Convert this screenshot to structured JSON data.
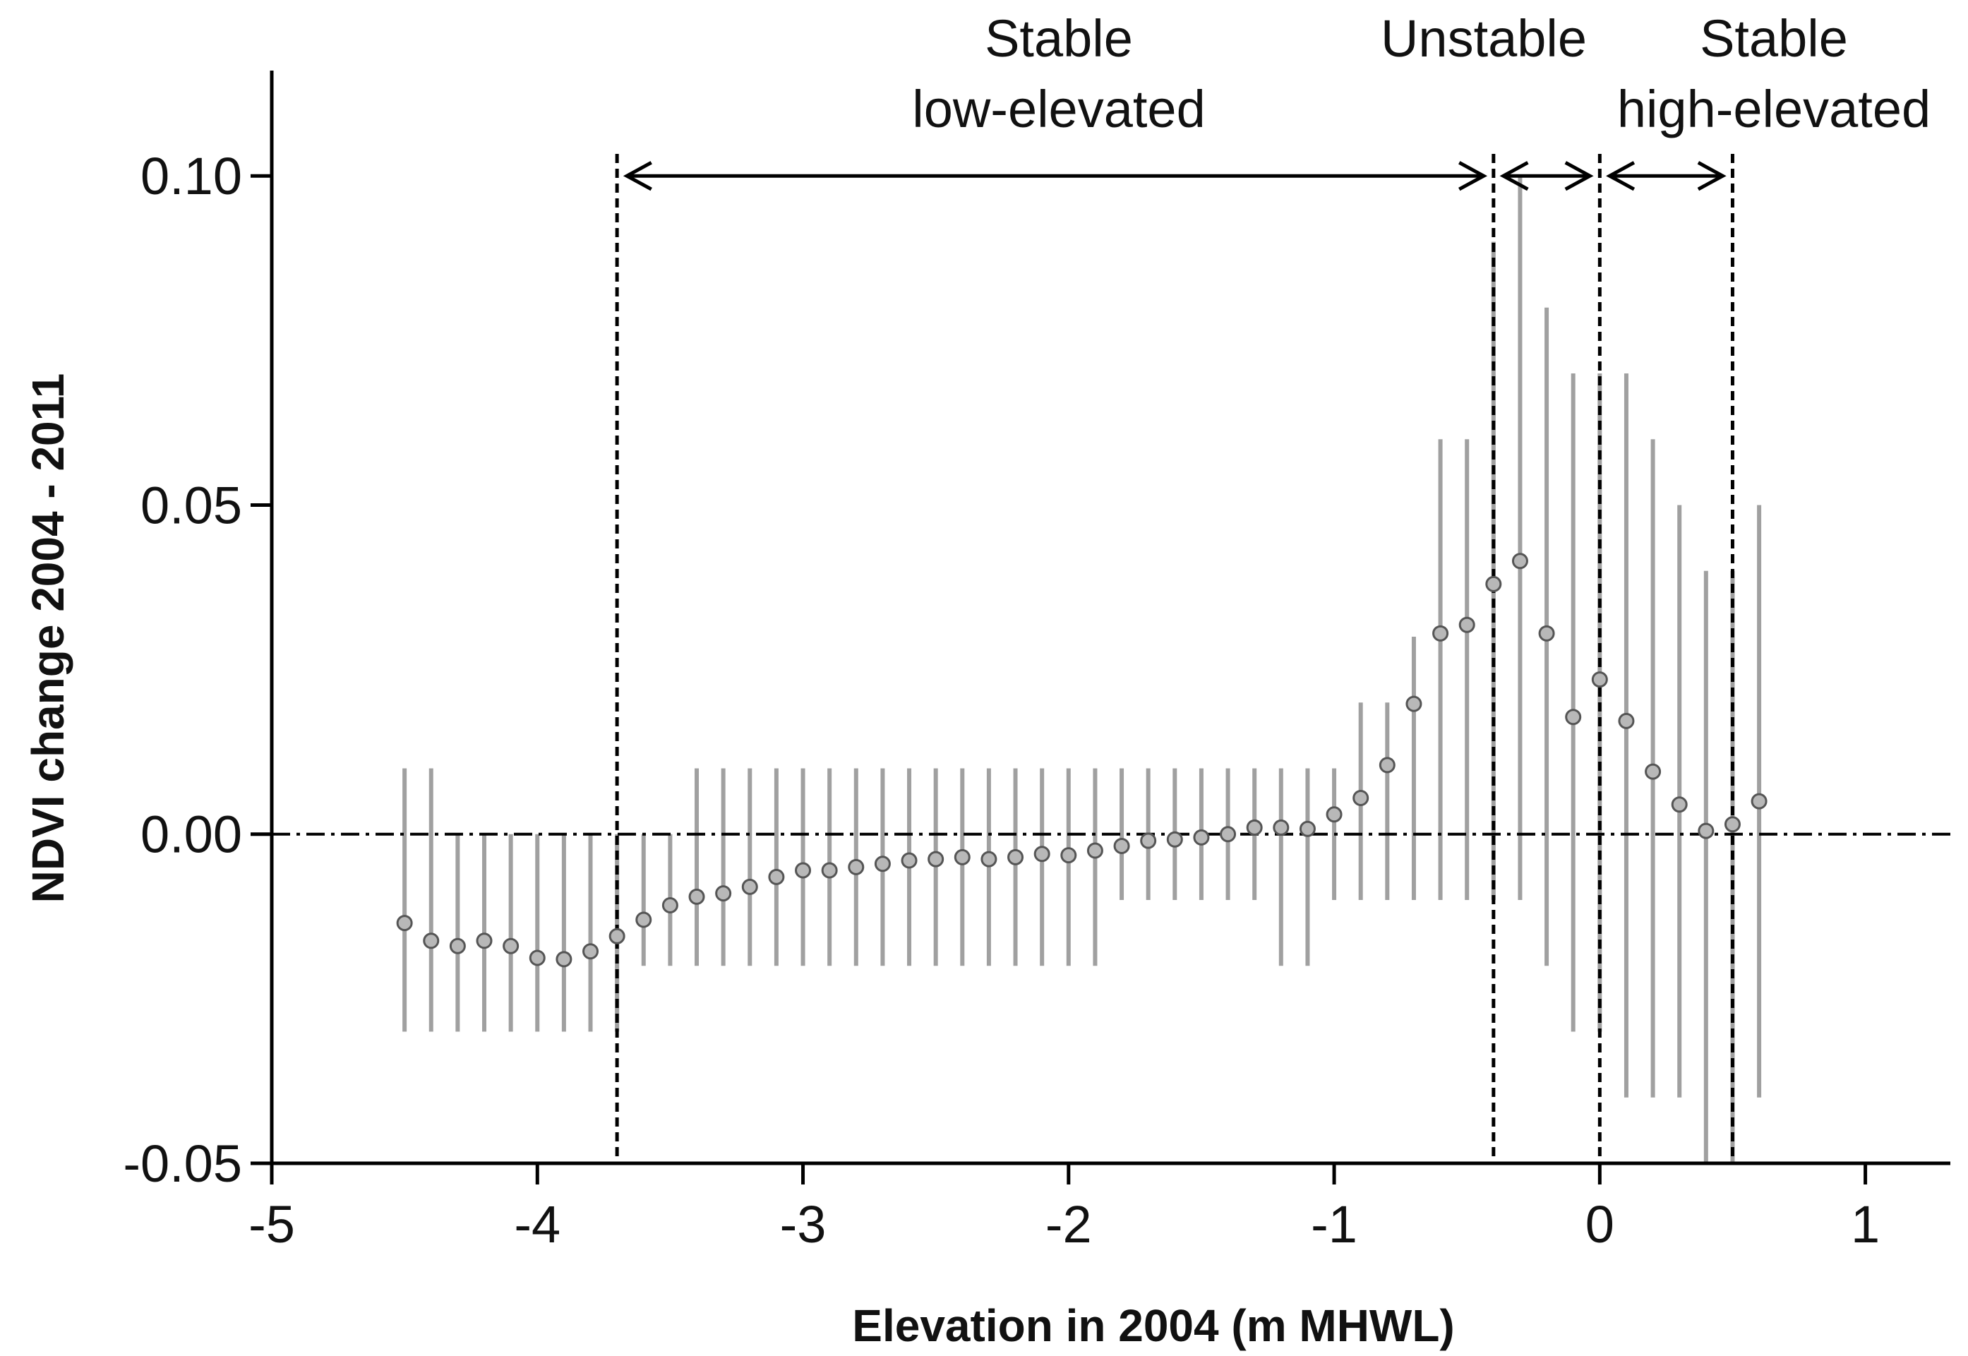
{
  "chart_data": {
    "type": "scatter",
    "subtype": "point-with-error-bars",
    "xlabel": "Elevation in 2004 (m MHWL)",
    "ylabel": "NDVI change 2004 - 2011",
    "xlim": [
      -5,
      1.32
    ],
    "ylim": [
      -0.05,
      0.116
    ],
    "xticks": [
      -5,
      -4,
      -3,
      -2,
      -1,
      0,
      1
    ],
    "xtick_labels": [
      "-5",
      "-4",
      "-3",
      "-2",
      "-1",
      "0",
      "1"
    ],
    "yticks": [
      -0.05,
      0.0,
      0.05,
      0.1
    ],
    "ytick_labels": [
      "-0.05",
      "0.00",
      "0.05",
      "0.10"
    ],
    "grid": false,
    "reference_line": {
      "y": 0,
      "style": "dash-dot"
    },
    "boundaries": [
      -3.7,
      -0.4,
      0.0,
      0.5
    ],
    "regions": [
      {
        "lines": [
          "Stable",
          "low-elevated"
        ],
        "from": -3.7,
        "to": -0.4
      },
      {
        "lines": [
          "Unstable"
        ],
        "from": -0.4,
        "to": 0.0
      },
      {
        "lines": [
          "Stable",
          "high-elevated"
        ],
        "from": 0.0,
        "to": 0.5
      }
    ],
    "series": [
      {
        "name": "NDVI change",
        "points": [
          {
            "x": -4.5,
            "y": -0.0135,
            "lo": -0.03,
            "hi": 0.01
          },
          {
            "x": -4.4,
            "y": -0.0162,
            "lo": -0.03,
            "hi": 0.01
          },
          {
            "x": -4.3,
            "y": -0.017,
            "lo": -0.03,
            "hi": 0.0
          },
          {
            "x": -4.2,
            "y": -0.0162,
            "lo": -0.03,
            "hi": 0.0
          },
          {
            "x": -4.1,
            "y": -0.017,
            "lo": -0.03,
            "hi": 0.0
          },
          {
            "x": -4.0,
            "y": -0.0188,
            "lo": -0.03,
            "hi": 0.0
          },
          {
            "x": -3.9,
            "y": -0.019,
            "lo": -0.03,
            "hi": 0.0
          },
          {
            "x": -3.8,
            "y": -0.0178,
            "lo": -0.03,
            "hi": 0.0
          },
          {
            "x": -3.7,
            "y": -0.0155,
            "lo": -0.03,
            "hi": 0.0
          },
          {
            "x": -3.6,
            "y": -0.013,
            "lo": -0.02,
            "hi": 0.0
          },
          {
            "x": -3.5,
            "y": -0.0108,
            "lo": -0.02,
            "hi": 0.0
          },
          {
            "x": -3.4,
            "y": -0.0095,
            "lo": -0.02,
            "hi": 0.01
          },
          {
            "x": -3.3,
            "y": -0.009,
            "lo": -0.02,
            "hi": 0.01
          },
          {
            "x": -3.2,
            "y": -0.008,
            "lo": -0.02,
            "hi": 0.01
          },
          {
            "x": -3.1,
            "y": -0.0065,
            "lo": -0.02,
            "hi": 0.01
          },
          {
            "x": -3.0,
            "y": -0.0055,
            "lo": -0.02,
            "hi": 0.01
          },
          {
            "x": -2.9,
            "y": -0.0055,
            "lo": -0.02,
            "hi": 0.01
          },
          {
            "x": -2.8,
            "y": -0.005,
            "lo": -0.02,
            "hi": 0.01
          },
          {
            "x": -2.7,
            "y": -0.0045,
            "lo": -0.02,
            "hi": 0.01
          },
          {
            "x": -2.6,
            "y": -0.004,
            "lo": -0.02,
            "hi": 0.01
          },
          {
            "x": -2.5,
            "y": -0.0038,
            "lo": -0.02,
            "hi": 0.01
          },
          {
            "x": -2.4,
            "y": -0.0035,
            "lo": -0.02,
            "hi": 0.01
          },
          {
            "x": -2.3,
            "y": -0.0038,
            "lo": -0.02,
            "hi": 0.01
          },
          {
            "x": -2.2,
            "y": -0.0035,
            "lo": -0.02,
            "hi": 0.01
          },
          {
            "x": -2.1,
            "y": -0.003,
            "lo": -0.02,
            "hi": 0.01
          },
          {
            "x": -2.0,
            "y": -0.0032,
            "lo": -0.02,
            "hi": 0.01
          },
          {
            "x": -1.9,
            "y": -0.0025,
            "lo": -0.02,
            "hi": 0.01
          },
          {
            "x": -1.8,
            "y": -0.0018,
            "lo": -0.01,
            "hi": 0.01
          },
          {
            "x": -1.7,
            "y": -0.001,
            "lo": -0.01,
            "hi": 0.01
          },
          {
            "x": -1.6,
            "y": -0.0008,
            "lo": -0.01,
            "hi": 0.01
          },
          {
            "x": -1.5,
            "y": -0.0005,
            "lo": -0.01,
            "hi": 0.01
          },
          {
            "x": -1.4,
            "y": 0.0,
            "lo": -0.01,
            "hi": 0.01
          },
          {
            "x": -1.3,
            "y": 0.001,
            "lo": -0.01,
            "hi": 0.01
          },
          {
            "x": -1.2,
            "y": 0.001,
            "lo": -0.02,
            "hi": 0.01
          },
          {
            "x": -1.1,
            "y": 0.0008,
            "lo": -0.02,
            "hi": 0.01
          },
          {
            "x": -1.0,
            "y": 0.003,
            "lo": -0.01,
            "hi": 0.01
          },
          {
            "x": -0.9,
            "y": 0.0055,
            "lo": -0.01,
            "hi": 0.02
          },
          {
            "x": -0.8,
            "y": 0.0105,
            "lo": -0.01,
            "hi": 0.02
          },
          {
            "x": -0.7,
            "y": 0.0198,
            "lo": -0.01,
            "hi": 0.03
          },
          {
            "x": -0.6,
            "y": 0.0305,
            "lo": -0.01,
            "hi": 0.06
          },
          {
            "x": -0.5,
            "y": 0.0318,
            "lo": -0.01,
            "hi": 0.06
          },
          {
            "x": -0.4,
            "y": 0.038,
            "lo": -0.01,
            "hi": 0.09
          },
          {
            "x": -0.3,
            "y": 0.0415,
            "lo": -0.01,
            "hi": 0.1
          },
          {
            "x": -0.2,
            "y": 0.0305,
            "lo": -0.02,
            "hi": 0.08
          },
          {
            "x": -0.1,
            "y": 0.0178,
            "lo": -0.03,
            "hi": 0.07
          },
          {
            "x": 0.0,
            "y": 0.0235,
            "lo": -0.03,
            "hi": 0.07
          },
          {
            "x": 0.1,
            "y": 0.0172,
            "lo": -0.04,
            "hi": 0.07
          },
          {
            "x": 0.2,
            "y": 0.0095,
            "lo": -0.04,
            "hi": 0.06
          },
          {
            "x": 0.3,
            "y": 0.0045,
            "lo": -0.04,
            "hi": 0.05
          },
          {
            "x": 0.4,
            "y": 0.0005,
            "lo": -0.05,
            "hi": 0.04
          },
          {
            "x": 0.5,
            "y": 0.0015,
            "lo": -0.05,
            "hi": 0.04
          },
          {
            "x": 0.6,
            "y": 0.005,
            "lo": -0.04,
            "hi": 0.05
          }
        ]
      }
    ]
  }
}
